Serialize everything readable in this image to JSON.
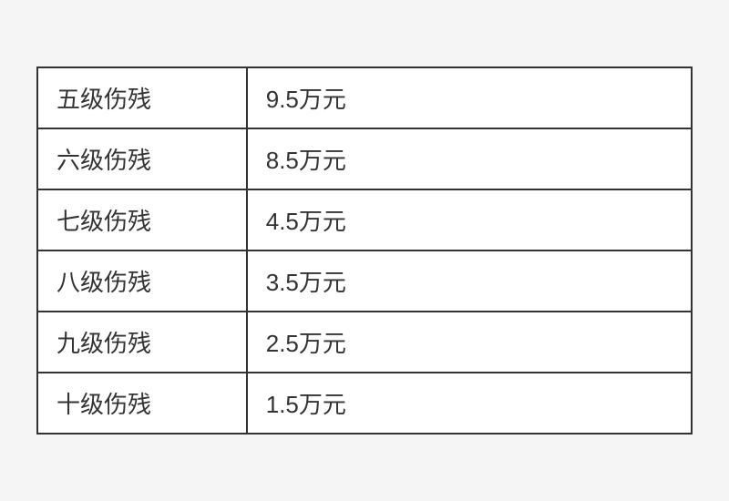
{
  "table": {
    "type": "table",
    "columns": [
      {
        "key": "level",
        "width_pct": 32,
        "align": "left"
      },
      {
        "key": "amount",
        "width_pct": 68,
        "align": "left"
      }
    ],
    "rows": [
      {
        "level": "五级伤残",
        "amount": "9.5万元"
      },
      {
        "level": "六级伤残",
        "amount": "8.5万元"
      },
      {
        "level": "七级伤残",
        "amount": "4.5万元"
      },
      {
        "level": "八级伤残",
        "amount": "3.5万元"
      },
      {
        "level": "九级伤残",
        "amount": "2.5万元"
      },
      {
        "level": "十级伤残",
        "amount": "1.5万元"
      }
    ],
    "styling": {
      "border_color": "#333333",
      "border_width": 2,
      "cell_padding_v": 14,
      "cell_padding_h": 20,
      "font_size": 26,
      "text_color": "#333333",
      "background_color": "#ffffff",
      "page_background": "#f5f5f5"
    }
  }
}
